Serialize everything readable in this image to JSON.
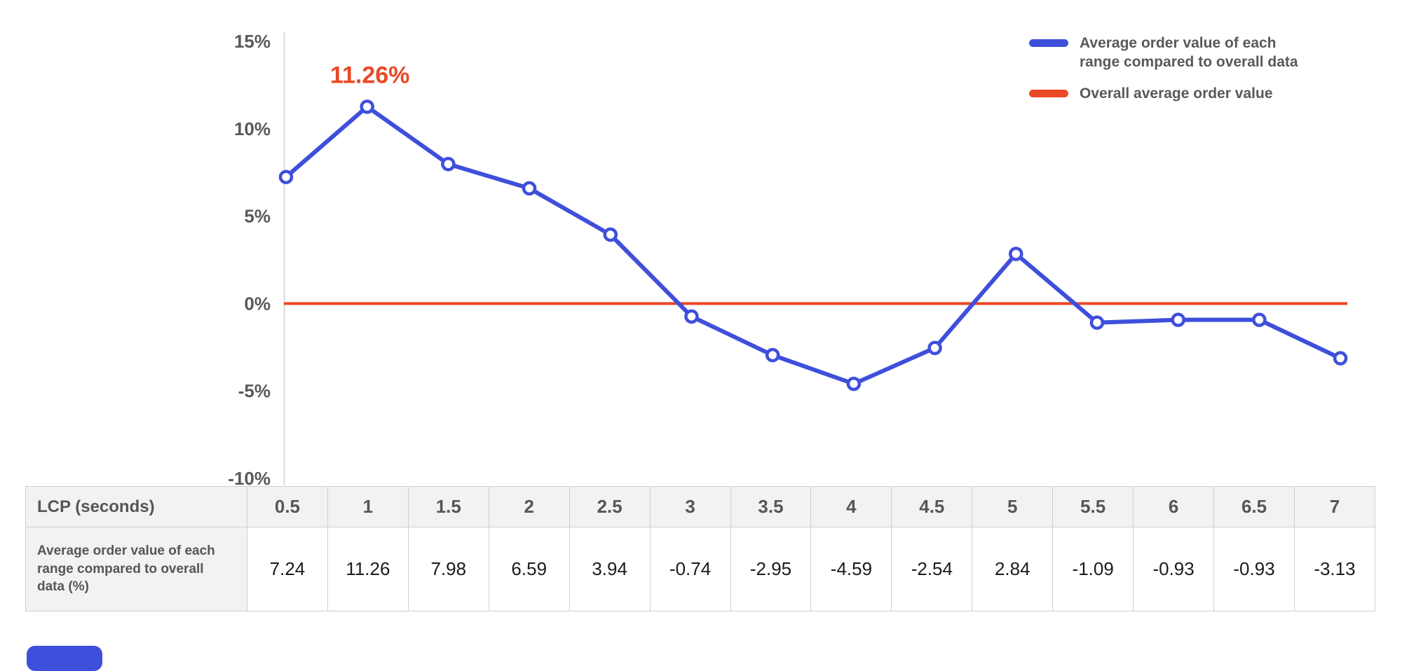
{
  "colors": {
    "series_blue": "#3E4FDC",
    "overall_red": "#EA4826",
    "axis_text": "#595959",
    "table_border": "#CFCFCF",
    "table_header_bg": "#F2F2F2"
  },
  "legend": [
    {
      "label": "Average order value of each range compared to overall data",
      "color": "#3E4FDC"
    },
    {
      "label": "Overall average order value",
      "color": "#EA4826"
    }
  ],
  "chart_data": {
    "type": "line",
    "title": "",
    "xlabel": "LCP (seconds)",
    "ylabel": "",
    "x": [
      0.5,
      1,
      1.5,
      2,
      2.5,
      3,
      3.5,
      4,
      4.5,
      5,
      5.5,
      6,
      6.5,
      7
    ],
    "series": [
      {
        "name": "Average order value of each range compared to overall data",
        "color": "#3E4FDC",
        "values": [
          7.24,
          11.26,
          7.98,
          6.59,
          3.94,
          -0.74,
          -2.95,
          -4.59,
          -2.54,
          2.84,
          -1.09,
          -0.93,
          -0.93,
          -3.13
        ]
      },
      {
        "name": "Overall average order value",
        "color": "#EA4826",
        "values": [
          0,
          0,
          0,
          0,
          0,
          0,
          0,
          0,
          0,
          0,
          0,
          0,
          0,
          0
        ]
      }
    ],
    "yticks": [
      {
        "label": "15%",
        "value": 15
      },
      {
        "label": "10%",
        "value": 10
      },
      {
        "label": "5%",
        "value": 5
      },
      {
        "label": "0%",
        "value": 0
      },
      {
        "label": "-5%",
        "value": -5
      },
      {
        "label": "-10%",
        "value": -10
      }
    ],
    "ylim": [
      -11.5,
      15.5
    ],
    "grid": false,
    "legend_position": "top-right",
    "annotation": {
      "x_index": 1,
      "x": 1,
      "value": 11.26,
      "text": "11.26%",
      "color": "#EA4826"
    }
  },
  "table": {
    "header_label": "LCP (seconds)",
    "row_label": "Average order value of each range compared to overall data (%)",
    "columns": [
      "0.5",
      "1",
      "1.5",
      "2",
      "2.5",
      "3",
      "3.5",
      "4",
      "4.5",
      "5",
      "5.5",
      "6",
      "6.5",
      "7"
    ],
    "values": [
      "7.24",
      "11.26",
      "7.98",
      "6.59",
      "3.94",
      "-0.74",
      "-2.95",
      "-4.59",
      "-2.54",
      "2.84",
      "-1.09",
      "-0.93",
      "-0.93",
      "-3.13"
    ]
  }
}
